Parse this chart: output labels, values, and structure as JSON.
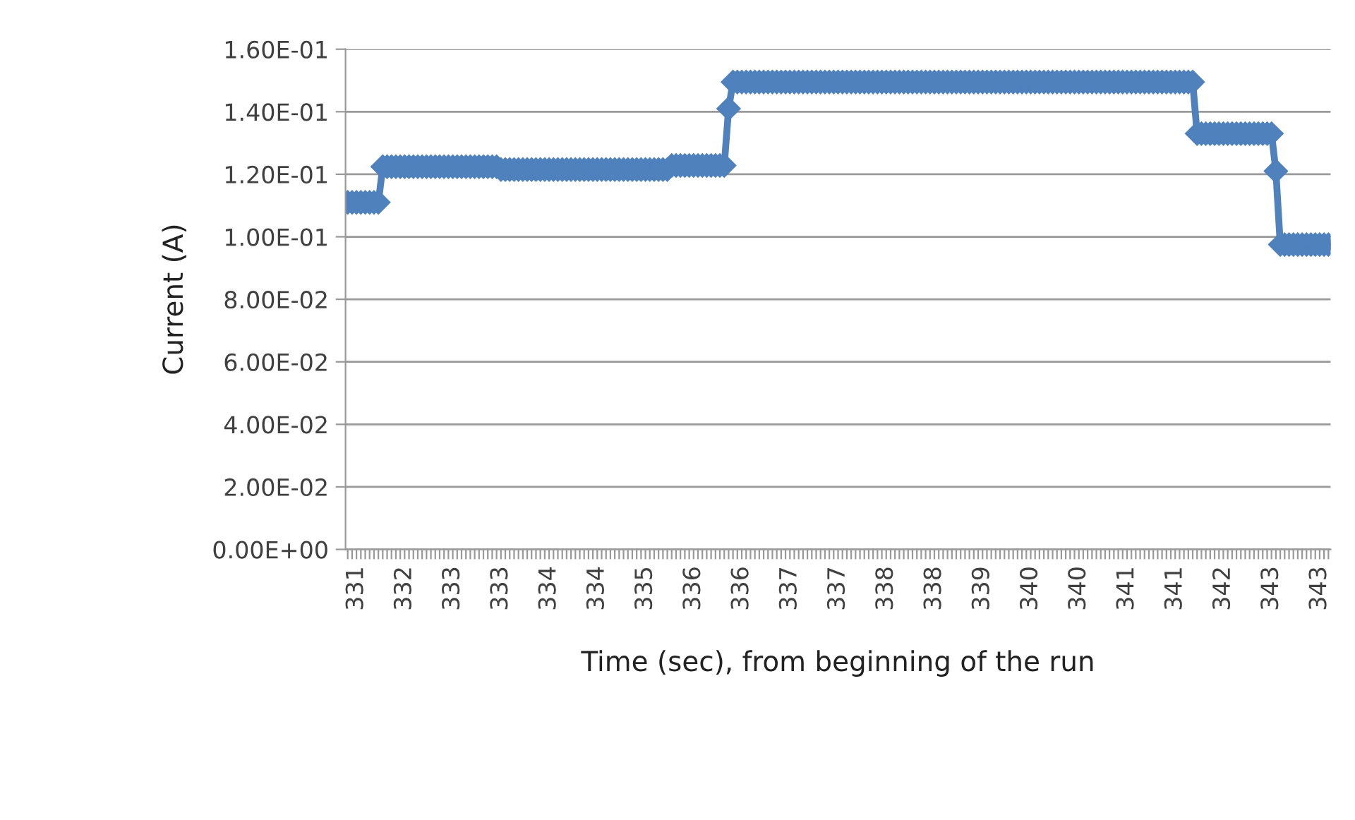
{
  "chart_data": {
    "type": "line",
    "xlabel": "Time (sec), from beginning of the run",
    "ylabel": "Current (A)",
    "categories": [
      null,
      null,
      "331",
      null,
      null,
      null,
      null,
      null,
      null,
      null,
      null,
      null,
      null,
      "332",
      null,
      null,
      null,
      null,
      null,
      null,
      null,
      null,
      null,
      null,
      "333",
      null,
      null,
      null,
      null,
      null,
      null,
      null,
      null,
      null,
      null,
      "333",
      null,
      null,
      null,
      null,
      null,
      null,
      null,
      null,
      null,
      null,
      "334",
      null,
      null,
      null,
      null,
      null,
      null,
      null,
      null,
      null,
      null,
      "334",
      null,
      null,
      null,
      null,
      null,
      null,
      null,
      null,
      null,
      null,
      "335",
      null,
      null,
      null,
      null,
      null,
      null,
      null,
      null,
      null,
      null,
      "336",
      null,
      null,
      null,
      null,
      null,
      null,
      null,
      null,
      null,
      null,
      "336",
      null,
      null,
      null,
      null,
      null,
      null,
      null,
      null,
      null,
      null,
      "337",
      null,
      null,
      null,
      null,
      null,
      null,
      null,
      null,
      null,
      null,
      "337",
      null,
      null,
      null,
      null,
      null,
      null,
      null,
      null,
      null,
      null,
      "338",
      null,
      null,
      null,
      null,
      null,
      null,
      null,
      null,
      null,
      null,
      "338",
      null,
      null,
      null,
      null,
      null,
      null,
      null,
      null,
      null,
      null,
      "339",
      null,
      null,
      null,
      null,
      null,
      null,
      null,
      null,
      null,
      null,
      "340",
      null,
      null,
      null,
      null,
      null,
      null,
      null,
      null,
      null,
      null,
      "340",
      null,
      null,
      null,
      null,
      null,
      null,
      null,
      null,
      null,
      null,
      "341",
      null,
      null,
      null,
      null,
      null,
      null,
      null,
      null,
      null,
      null,
      "341",
      null,
      null,
      null,
      null,
      null,
      null,
      null,
      null,
      null,
      null,
      "342",
      null,
      null,
      null,
      null,
      null,
      null,
      null,
      null,
      null,
      null,
      "343",
      null,
      null,
      null,
      null,
      null,
      null,
      null,
      null,
      null,
      null,
      "343",
      null,
      null
    ],
    "series": [
      {
        "color": "#4f81bd",
        "values": [
          0.111,
          0.111,
          0.111,
          0.111,
          0.111,
          0.111,
          0.111,
          0.111,
          0.1224,
          0.1224,
          0.1224,
          0.1224,
          0.1224,
          0.1224,
          0.1224,
          0.1224,
          0.1224,
          0.1224,
          0.1224,
          0.1224,
          0.1224,
          0.1224,
          0.1224,
          0.1224,
          0.1224,
          0.1224,
          0.1224,
          0.1224,
          0.1224,
          0.1224,
          0.1224,
          0.1224,
          0.1224,
          0.1224,
          0.1224,
          0.1215,
          0.1215,
          0.1215,
          0.1215,
          0.1215,
          0.1215,
          0.1215,
          0.1215,
          0.1215,
          0.1215,
          0.1215,
          0.1215,
          0.1215,
          0.1215,
          0.1215,
          0.1215,
          0.1215,
          0.1215,
          0.1215,
          0.1215,
          0.1215,
          0.1215,
          0.1215,
          0.1215,
          0.1215,
          0.1215,
          0.1215,
          0.1215,
          0.1215,
          0.1215,
          0.1215,
          0.1215,
          0.1215,
          0.1215,
          0.1215,
          0.1215,
          0.1215,
          0.1215,
          0.1215,
          0.1228,
          0.1228,
          0.1228,
          0.1228,
          0.1228,
          0.1228,
          0.1228,
          0.1228,
          0.1228,
          0.1228,
          0.1228,
          0.1228,
          0.1228,
          0.141,
          0.1495,
          0.1495,
          0.1495,
          0.1495,
          0.1495,
          0.1495,
          0.1495,
          0.1495,
          0.1495,
          0.1495,
          0.1495,
          0.1495,
          0.1495,
          0.1495,
          0.1495,
          0.1495,
          0.1495,
          0.1495,
          0.1495,
          0.1495,
          0.1495,
          0.1495,
          0.1495,
          0.1495,
          0.1495,
          0.1495,
          0.1495,
          0.1495,
          0.1495,
          0.1495,
          0.1495,
          0.1495,
          0.1495,
          0.1495,
          0.1495,
          0.1495,
          0.1495,
          0.1495,
          0.1495,
          0.1495,
          0.1495,
          0.1495,
          0.1495,
          0.1495,
          0.1495,
          0.1495,
          0.1495,
          0.1495,
          0.1495,
          0.1495,
          0.1495,
          0.1495,
          0.1495,
          0.1495,
          0.1495,
          0.1495,
          0.1495,
          0.1495,
          0.1495,
          0.1495,
          0.1495,
          0.1495,
          0.1495,
          0.1495,
          0.1495,
          0.1495,
          0.1495,
          0.1495,
          0.1495,
          0.1495,
          0.1495,
          0.1495,
          0.1495,
          0.1495,
          0.1495,
          0.1495,
          0.1495,
          0.1495,
          0.1495,
          0.1495,
          0.1495,
          0.1495,
          0.1495,
          0.1495,
          0.1495,
          0.1495,
          0.1495,
          0.1495,
          0.1495,
          0.1495,
          0.1495,
          0.1495,
          0.1495,
          0.1495,
          0.1495,
          0.1495,
          0.1495,
          0.1495,
          0.1495,
          0.1495,
          0.1495,
          0.1495,
          0.1495,
          0.1495,
          0.1495,
          0.1495,
          0.133,
          0.133,
          0.133,
          0.133,
          0.133,
          0.133,
          0.133,
          0.133,
          0.133,
          0.133,
          0.133,
          0.133,
          0.133,
          0.133,
          0.133,
          0.133,
          0.133,
          0.133,
          0.121,
          0.0975,
          0.0975,
          0.0975,
          0.0975,
          0.0975,
          0.0975,
          0.0975,
          0.0975,
          0.0975,
          0.0975,
          0.0975,
          0.0975
        ]
      }
    ],
    "ylim": [
      0,
      0.16
    ],
    "yticks": [
      {
        "value": 0,
        "label": "0.00E+00"
      },
      {
        "value": 0.02,
        "label": "2.00E-02"
      },
      {
        "value": 0.04,
        "label": "4.00E-02"
      },
      {
        "value": 0.06,
        "label": "6.00E-02"
      },
      {
        "value": 0.08,
        "label": "8.00E-02"
      },
      {
        "value": 0.1,
        "label": "1.00E-01"
      },
      {
        "value": 0.12,
        "label": "1.20E-01"
      },
      {
        "value": 0.14,
        "label": "1.40E-01"
      },
      {
        "value": 0.16,
        "label": "1.60E-01"
      }
    ],
    "grid": "y",
    "marker": "diamond",
    "line_style": "solid"
  }
}
